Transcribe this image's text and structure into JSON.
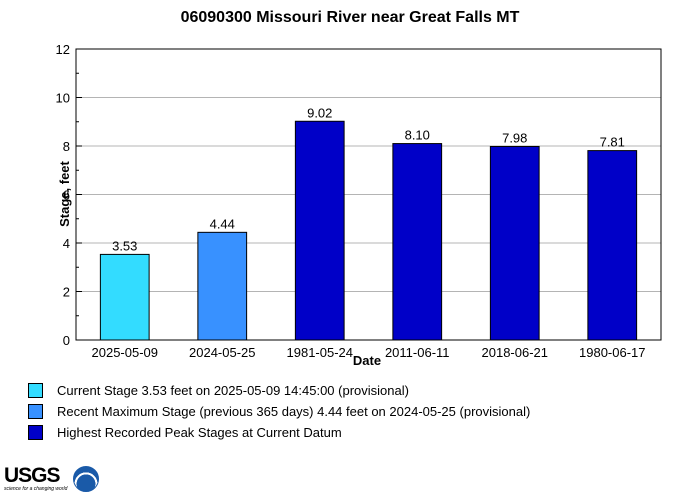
{
  "chart_data": {
    "type": "bar",
    "title": "06090300 Missouri River near Great Falls MT",
    "xlabel": "Date",
    "ylabel": "Stage, feet",
    "ylim": [
      0,
      12
    ],
    "yticks": [
      0,
      2,
      4,
      6,
      8,
      10,
      12
    ],
    "grid": true,
    "categories": [
      "2025-05-09",
      "2024-05-25",
      "1981-05-24",
      "2011-06-11",
      "2018-06-21",
      "1980-06-17"
    ],
    "values": [
      3.53,
      4.44,
      9.02,
      8.1,
      7.98,
      7.81
    ],
    "value_labels": [
      "3.53",
      "4.44",
      "9.02",
      "8.10",
      "7.98",
      "7.81"
    ],
    "bar_groups": [
      "current",
      "recent",
      "peak",
      "peak",
      "peak",
      "peak"
    ],
    "colors": {
      "current": "#33dcff",
      "recent": "#3891ff",
      "peak": "#0000c8"
    }
  },
  "legend": [
    {
      "group": "current",
      "label": "Current Stage 3.53 feet on 2025-05-09 14:45:00 (provisional)"
    },
    {
      "group": "recent",
      "label": "Recent Maximum Stage (previous 365 days) 4.44 feet on 2024-05-25 (provisional)"
    },
    {
      "group": "peak",
      "label": "Highest Recorded Peak Stages at Current Datum"
    }
  ],
  "logos": {
    "usgs": "USGS",
    "usgs_tagline": "science for a changing world",
    "noaa_icon": "noaa-logo-icon"
  }
}
